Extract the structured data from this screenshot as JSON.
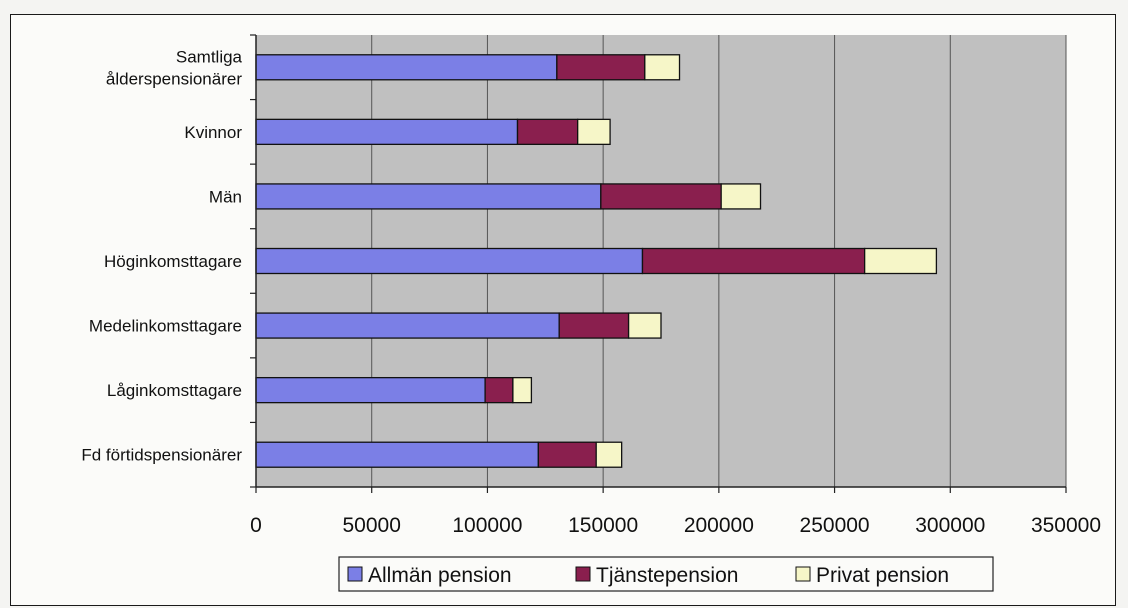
{
  "header_fragment": "",
  "chart_data": {
    "type": "bar",
    "orientation": "horizontal",
    "stacked": true,
    "categories": [
      "Samtliga ålderspensionärer",
      "Kvinnor",
      "Män",
      "Höginkomsttagare",
      "Medelinkomsttagare",
      "Låginkomsttagare",
      "Fd förtidspensionärer"
    ],
    "category_lines": [
      [
        "Samtliga",
        "ålderspensionärer"
      ],
      [
        "Kvinnor"
      ],
      [
        "Män"
      ],
      [
        "Höginkomsttagare"
      ],
      [
        "Medelinkomsttagare"
      ],
      [
        "Låginkomsttagare"
      ],
      [
        "Fd förtidspensionärer"
      ]
    ],
    "series": [
      {
        "name": "Allmän pension",
        "color": "#7b7fe6",
        "values": [
          130000,
          113000,
          149000,
          167000,
          131000,
          99000,
          122000
        ]
      },
      {
        "name": "Tjänstepension",
        "color": "#8a1f4e",
        "values": [
          38000,
          26000,
          52000,
          96000,
          30000,
          12000,
          25000
        ]
      },
      {
        "name": "Privat pension",
        "color": "#f6f6c8",
        "values": [
          15000,
          14000,
          17000,
          31000,
          14000,
          8000,
          11000
        ]
      }
    ],
    "xlim": [
      0,
      350000
    ],
    "xticks": [
      0,
      50000,
      100000,
      150000,
      200000,
      250000,
      300000,
      350000
    ],
    "grid": true,
    "legend": "bottom",
    "plot_background": "#c0c0c0",
    "title": "",
    "xlabel": "",
    "ylabel": ""
  }
}
